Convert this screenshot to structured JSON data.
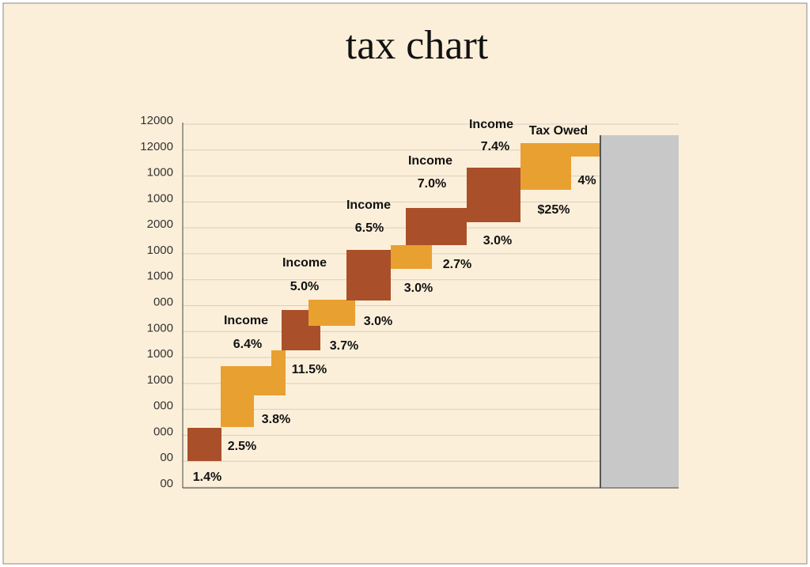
{
  "title": "tax chart",
  "axis": {
    "labels": [
      "12000",
      "12000",
      "1000",
      "1000",
      "2000",
      "1000",
      "1000",
      "000",
      "1000",
      "1000",
      "1000",
      "000",
      "000",
      "00",
      "00"
    ]
  },
  "labels": [
    "1.4%",
    "2.5%",
    "3.8%",
    "11.5%",
    "Income",
    "6.4%",
    "3.7%",
    "3.0%",
    "Income",
    "5.0%",
    "3.0%",
    "2.7%",
    "Income",
    "6.5%",
    "3.0%",
    "Income",
    "7.0%",
    "Income",
    "7.4%",
    "Tax Owed",
    "4%",
    "$25%"
  ]
}
